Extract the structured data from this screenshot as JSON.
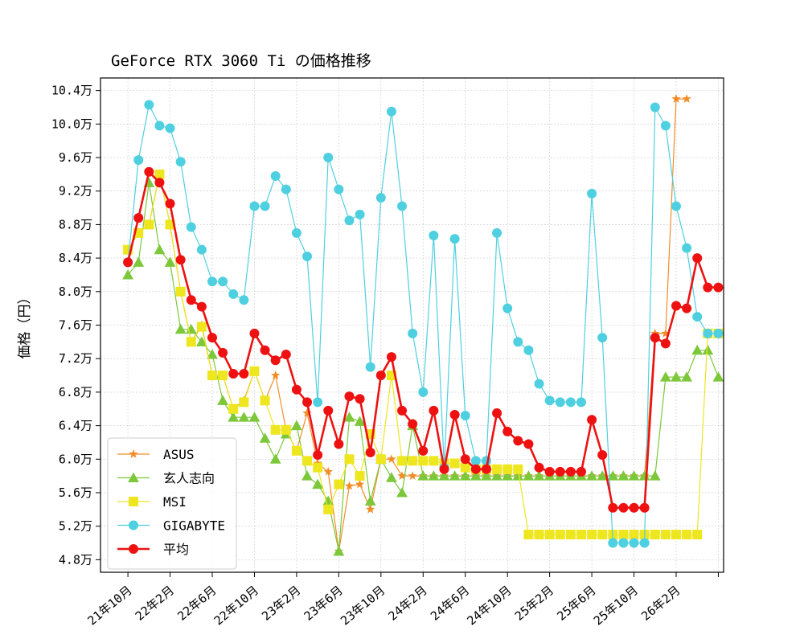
{
  "chart_data": {
    "type": "line",
    "title": "GeForce RTX 3060 Ti の価格推移",
    "xlabel": "",
    "ylabel": "価格（円）",
    "ylim": [
      4.65,
      10.55
    ],
    "yticks": [
      4.8,
      5.2,
      5.6,
      6.0,
      6.4,
      6.8,
      7.2,
      7.6,
      8.0,
      8.4,
      8.8,
      9.2,
      9.6,
      10.0,
      10.4
    ],
    "ytick_labels": [
      "4.8万",
      "5.2万",
      "5.6万",
      "6.0万",
      "6.4万",
      "6.8万",
      "7.2万",
      "7.6万",
      "8.0万",
      "8.4万",
      "8.8万",
      "9.2万",
      "9.6万",
      "10.0万",
      "10.4万"
    ],
    "y_unit": "万円",
    "x_unit": "months since 21年10月",
    "xlim": [
      -2.6,
      56.5
    ],
    "xticks": [
      0,
      4,
      8,
      12,
      16,
      20,
      24,
      28,
      32,
      36,
      40,
      44,
      48,
      52,
      56
    ],
    "xtick_labels": [
      "21年10月",
      "22年2月",
      "22年6月",
      "22年10月",
      "23年2月",
      "23年6月",
      "23年10月",
      "24年2月",
      "24年6月",
      "24年10月",
      "25年2月",
      "25年6月",
      "25年10月",
      "26年2月",
      ""
    ],
    "grid": true,
    "legend_position": "lower-left",
    "series": [
      {
        "name": "ASUS",
        "color": "#f28c28",
        "marker": "star",
        "linewidth": 1.2,
        "x": [
          0,
          1,
          2,
          3,
          4,
          5,
          6,
          7,
          8,
          9,
          10,
          11,
          12,
          13,
          14,
          15,
          16,
          17,
          18,
          19,
          20,
          21,
          22,
          23,
          24,
          25,
          26,
          27,
          28,
          29,
          30,
          31,
          32,
          33,
          34,
          35,
          36,
          37,
          38,
          39,
          40,
          41,
          42,
          43,
          44,
          45,
          46,
          47,
          48,
          49,
          50,
          51,
          52,
          53
        ],
        "y": [
          8.5,
          8.7,
          8.8,
          9.4,
          8.8,
          8.0,
          7.4,
          7.6,
          7.0,
          7.0,
          6.6,
          6.7,
          7.05,
          6.7,
          7.0,
          6.35,
          6.1,
          6.55,
          5.95,
          5.85,
          4.9,
          5.68,
          5.7,
          5.4,
          6.0,
          6.0,
          5.8,
          5.8,
          5.8,
          5.8,
          5.8,
          5.8,
          5.8,
          5.8,
          5.8,
          5.8,
          5.8,
          5.8,
          5.8,
          5.8,
          5.8,
          5.8,
          5.8,
          5.8,
          5.8,
          5.8,
          5.8,
          5.8,
          5.8,
          5.8,
          7.5,
          7.5,
          10.3,
          10.3
        ]
      },
      {
        "name": "玄人志向",
        "color": "#7cc83a",
        "marker": "triangle",
        "linewidth": 1.2,
        "x": [
          0,
          1,
          2,
          3,
          4,
          5,
          6,
          7,
          8,
          9,
          10,
          11,
          12,
          13,
          14,
          15,
          16,
          17,
          18,
          19,
          20,
          21,
          22,
          23,
          24,
          25,
          26,
          27,
          28,
          29,
          30,
          31,
          32,
          33,
          34,
          35,
          36,
          37,
          38,
          39,
          40,
          41,
          42,
          43,
          44,
          45,
          46,
          47,
          48,
          49,
          50,
          51,
          52,
          53,
          54,
          55,
          56
        ],
        "y": [
          8.2,
          8.35,
          9.3,
          8.5,
          8.35,
          7.55,
          7.55,
          7.4,
          7.25,
          6.7,
          6.5,
          6.5,
          6.5,
          6.25,
          6.0,
          6.3,
          6.4,
          5.8,
          5.7,
          5.5,
          4.9,
          6.5,
          6.45,
          5.5,
          6.0,
          5.78,
          5.6,
          6.4,
          5.8,
          5.8,
          5.8,
          5.8,
          5.8,
          5.8,
          5.8,
          5.8,
          5.8,
          5.8,
          5.8,
          5.8,
          5.8,
          5.8,
          5.8,
          5.8,
          5.8,
          5.8,
          5.8,
          5.8,
          5.8,
          5.8,
          5.8,
          6.98,
          6.98,
          6.98,
          7.3,
          7.3,
          6.98
        ]
      },
      {
        "name": "MSI",
        "color": "#eee61e",
        "marker": "square",
        "linewidth": 1.2,
        "x": [
          0,
          1,
          2,
          3,
          4,
          5,
          6,
          7,
          8,
          9,
          10,
          11,
          12,
          13,
          14,
          15,
          16,
          17,
          18,
          19,
          20,
          21,
          22,
          23,
          24,
          25,
          26,
          27,
          28,
          29,
          30,
          31,
          32,
          33,
          34,
          35,
          36,
          37,
          38,
          39,
          40,
          41,
          42,
          43,
          44,
          45,
          46,
          47,
          48,
          49,
          50,
          51,
          52,
          53,
          54,
          55,
          56
        ],
        "y": [
          8.5,
          8.7,
          8.8,
          9.4,
          8.8,
          8.0,
          7.4,
          7.58,
          7.0,
          7.0,
          6.6,
          6.68,
          7.05,
          6.7,
          6.35,
          6.35,
          6.1,
          5.98,
          5.9,
          5.4,
          5.7,
          6.0,
          5.8,
          6.3,
          6.0,
          7.0,
          5.98,
          5.98,
          5.98,
          5.98,
          5.95,
          5.95,
          5.9,
          5.88,
          5.88,
          5.88,
          5.88,
          5.88,
          5.1,
          5.1,
          5.1,
          5.1,
          5.1,
          5.1,
          5.1,
          5.1,
          5.1,
          5.1,
          5.1,
          5.1,
          5.1,
          5.1,
          5.1,
          5.1,
          5.1,
          7.5,
          7.5
        ]
      },
      {
        "name": "GIGABYTE",
        "color": "#4fd0e0",
        "marker": "circle",
        "linewidth": 1.2,
        "x": [
          0,
          1,
          2,
          3,
          4,
          5,
          6,
          7,
          8,
          9,
          10,
          11,
          12,
          13,
          14,
          15,
          16,
          17,
          18,
          19,
          20,
          21,
          22,
          23,
          24,
          25,
          26,
          27,
          28,
          29,
          30,
          31,
          32,
          33,
          34,
          35,
          36,
          37,
          38,
          39,
          40,
          41,
          42,
          43,
          44,
          45,
          46,
          47,
          48,
          49,
          50,
          51,
          52,
          53,
          54,
          55,
          56
        ],
        "y": [
          8.35,
          9.57,
          10.23,
          9.98,
          9.95,
          9.55,
          8.77,
          8.5,
          8.12,
          8.12,
          7.97,
          7.9,
          9.02,
          9.02,
          9.38,
          9.22,
          8.7,
          8.42,
          6.68,
          9.6,
          9.22,
          8.85,
          8.92,
          7.1,
          9.12,
          10.15,
          9.02,
          7.5,
          6.8,
          8.67,
          5.9,
          8.63,
          6.52,
          5.98,
          5.98,
          8.7,
          7.8,
          7.4,
          7.3,
          6.9,
          6.7,
          6.68,
          6.68,
          6.68,
          9.17,
          7.45,
          5.0,
          5.0,
          5.0,
          5.0,
          10.2,
          9.98,
          9.02,
          8.52,
          7.7,
          7.5,
          7.5
        ]
      },
      {
        "name": "平均",
        "color": "#ee1111",
        "marker": "circle",
        "linewidth": 2.6,
        "x": [
          0,
          1,
          2,
          3,
          4,
          5,
          6,
          7,
          8,
          9,
          10,
          11,
          12,
          13,
          14,
          15,
          16,
          17,
          18,
          19,
          20,
          21,
          22,
          23,
          24,
          25,
          26,
          27,
          28,
          29,
          30,
          31,
          32,
          33,
          34,
          35,
          36,
          37,
          38,
          39,
          40,
          41,
          42,
          43,
          44,
          45,
          46,
          47,
          48,
          49,
          50,
          51,
          52,
          53,
          54,
          55,
          56
        ],
        "y": [
          8.35,
          8.88,
          9.43,
          9.3,
          9.05,
          8.38,
          7.9,
          7.82,
          7.45,
          7.27,
          7.02,
          7.02,
          7.5,
          7.3,
          7.18,
          7.25,
          6.83,
          6.68,
          6.05,
          6.58,
          6.18,
          6.75,
          6.72,
          6.08,
          7.0,
          7.22,
          6.58,
          6.42,
          6.1,
          6.58,
          5.88,
          6.53,
          6.0,
          5.88,
          5.88,
          6.55,
          6.33,
          6.22,
          6.18,
          5.9,
          5.85,
          5.85,
          5.85,
          5.85,
          6.47,
          6.05,
          5.42,
          5.42,
          5.42,
          5.42,
          7.45,
          7.38,
          7.83,
          7.8,
          8.4,
          8.05,
          8.05
        ]
      }
    ]
  }
}
